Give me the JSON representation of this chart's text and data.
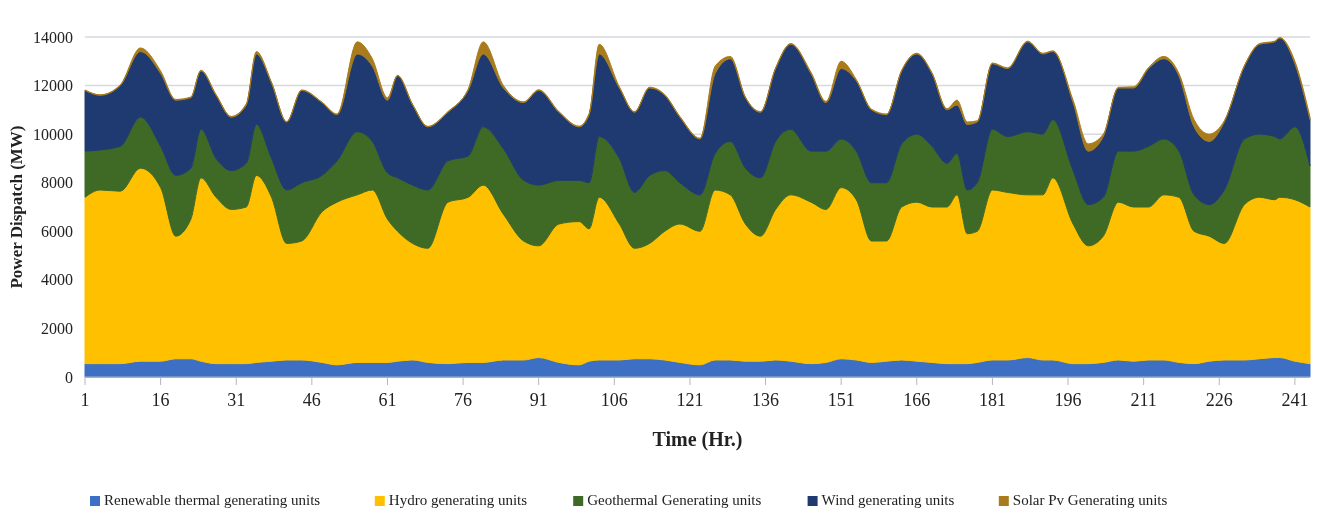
{
  "chart_data": {
    "type": "area",
    "stacked": true,
    "xlabel": "Time (Hr.)",
    "ylabel": "Power Dispatch (MW)",
    "x": [
      1,
      4,
      8,
      12,
      16,
      19,
      22,
      24,
      27,
      30,
      33,
      35,
      38,
      41,
      44,
      48,
      51,
      55,
      58,
      61,
      63,
      66,
      69,
      73,
      77,
      80,
      84,
      88,
      91,
      95,
      99,
      101,
      103,
      107,
      110,
      113,
      116,
      119,
      123,
      126,
      129,
      132,
      135,
      138,
      141,
      145,
      148,
      151,
      154,
      157,
      160,
      163,
      166,
      169,
      172,
      174,
      176,
      178,
      181,
      184,
      188,
      191,
      193,
      197,
      200,
      203,
      206,
      209,
      212,
      215,
      218,
      221,
      224,
      227,
      231,
      234,
      237,
      238,
      241,
      244
    ],
    "xlim": [
      1,
      244
    ],
    "xticks": [
      1,
      16,
      31,
      46,
      61,
      76,
      91,
      106,
      121,
      136,
      151,
      166,
      181,
      196,
      211,
      226,
      241
    ],
    "ylim": [
      0,
      14000
    ],
    "yticks": [
      0,
      2000,
      4000,
      6000,
      8000,
      10000,
      12000,
      14000
    ],
    "grid": "y",
    "legend": "bottom",
    "series": [
      {
        "name": "Renewable thermal generating units",
        "color": "#3d6fc4",
        "values": [
          550,
          550,
          550,
          650,
          650,
          750,
          750,
          650,
          550,
          550,
          550,
          600,
          650,
          700,
          700,
          600,
          500,
          600,
          600,
          600,
          650,
          700,
          600,
          550,
          600,
          600,
          700,
          700,
          800,
          600,
          500,
          650,
          700,
          700,
          750,
          750,
          700,
          600,
          500,
          700,
          700,
          650,
          650,
          700,
          650,
          550,
          600,
          750,
          700,
          600,
          650,
          700,
          650,
          600,
          550,
          550,
          550,
          600,
          700,
          700,
          800,
          700,
          700,
          550,
          550,
          600,
          700,
          650,
          700,
          700,
          600,
          550,
          650,
          700,
          700,
          750,
          800,
          800,
          650,
          550
        ]
      },
      {
        "name": "Hydro generating units",
        "color": "#ffc000",
        "values": [
          6850,
          7150,
          7100,
          7950,
          7150,
          5050,
          5750,
          7550,
          6850,
          6350,
          6450,
          7700,
          6750,
          4800,
          4900,
          6200,
          6700,
          6900,
          7100,
          5900,
          5350,
          4800,
          4700,
          6650,
          6800,
          7300,
          6000,
          4900,
          4600,
          5700,
          5900,
          5450,
          6700,
          5600,
          4550,
          4750,
          5300,
          5700,
          5500,
          7000,
          6800,
          5650,
          5150,
          6200,
          6850,
          6650,
          6300,
          7050,
          6600,
          5000,
          4950,
          6300,
          6550,
          6400,
          6450,
          6950,
          5350,
          5400,
          7000,
          6900,
          6700,
          6800,
          7500,
          5750,
          4850,
          5200,
          6500,
          6350,
          6300,
          6800,
          6800,
          5450,
          5150,
          4800,
          6400,
          6650,
          6500,
          6600,
          6650,
          6450
        ]
      },
      {
        "name": "Geothermal Generating units",
        "color": "#3e6a25",
        "values": [
          1900,
          1650,
          1850,
          2100,
          1700,
          2500,
          2100,
          2000,
          1600,
          1600,
          1800,
          2100,
          1600,
          2200,
          2400,
          1500,
          1700,
          2600,
          2000,
          1900,
          2200,
          2400,
          2400,
          1700,
          1700,
          2400,
          2700,
          2500,
          2500,
          1800,
          1700,
          1900,
          2500,
          2700,
          2300,
          2800,
          2500,
          1700,
          1500,
          1500,
          2200,
          2300,
          2400,
          2800,
          2700,
          2100,
          2400,
          2000,
          2000,
          2400,
          2400,
          2600,
          2800,
          2500,
          1800,
          1700,
          1800,
          2000,
          2500,
          2300,
          2600,
          2500,
          2400,
          2200,
          1700,
          1600,
          2100,
          2300,
          2500,
          2300,
          1900,
          1500,
          1300,
          2200,
          2700,
          2600,
          2600,
          2400,
          3000,
          1700
        ]
      },
      {
        "name": "Wind generating units",
        "color": "#1f3a70",
        "values": [
          2500,
          2250,
          2500,
          2700,
          3000,
          3100,
          2900,
          2400,
          2600,
          2200,
          2400,
          2900,
          3100,
          2800,
          3800,
          3000,
          1900,
          3200,
          3100,
          3000,
          4200,
          3300,
          2600,
          2000,
          2700,
          3000,
          2500,
          3200,
          3900,
          2800,
          2200,
          2800,
          3400,
          2900,
          3300,
          3600,
          3100,
          2700,
          2300,
          3300,
          3400,
          2900,
          2700,
          3000,
          3500,
          3200,
          2000,
          2900,
          2900,
          3000,
          2800,
          3000,
          3300,
          3000,
          2200,
          2000,
          2700,
          2500,
          2700,
          2800,
          3700,
          3300,
          2800,
          2800,
          2200,
          2500,
          2600,
          2600,
          3200,
          3300,
          3100,
          2800,
          2600,
          2800,
          3000,
          3700,
          3900,
          4150,
          2600,
          1900
        ]
      },
      {
        "name": "Solar Pv Generating units",
        "color": "#a87c1c",
        "values": [
          20,
          20,
          30,
          150,
          100,
          30,
          30,
          30,
          30,
          30,
          50,
          100,
          30,
          20,
          20,
          20,
          30,
          500,
          300,
          100,
          20,
          20,
          20,
          30,
          50,
          500,
          100,
          30,
          30,
          30,
          30,
          50,
          400,
          50,
          30,
          30,
          30,
          30,
          30,
          300,
          100,
          30,
          30,
          30,
          30,
          50,
          50,
          300,
          50,
          30,
          30,
          30,
          30,
          30,
          50,
          200,
          100,
          50,
          30,
          30,
          30,
          30,
          30,
          100,
          300,
          100,
          30,
          50,
          50,
          100,
          100,
          300,
          300,
          50,
          30,
          30,
          30,
          30,
          100,
          100
        ]
      }
    ]
  }
}
